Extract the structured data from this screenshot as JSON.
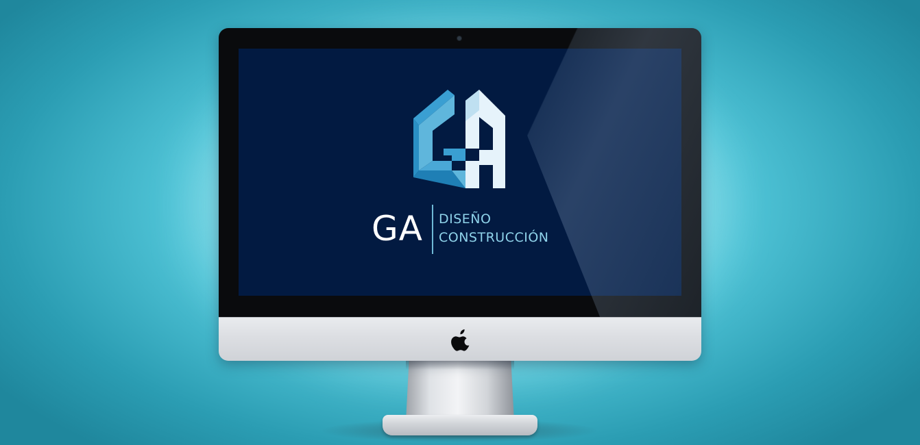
{
  "scene": {
    "device": "imac",
    "background_color": "#3fb8cc",
    "glow_color": "#d6f7fb"
  },
  "screen": {
    "background_color": "#021a41",
    "logo": {
      "monogram_icon": "ga-house-monogram-icon",
      "colors": {
        "light": "#e6f3fb",
        "mid": "#5fb6dc",
        "dark": "#2a8fc4"
      },
      "brand": "GA",
      "line1": "DISEÑO",
      "line2": "CONSTRUCCIÓN"
    }
  },
  "chin": {
    "icon": "apple-logo-icon"
  }
}
